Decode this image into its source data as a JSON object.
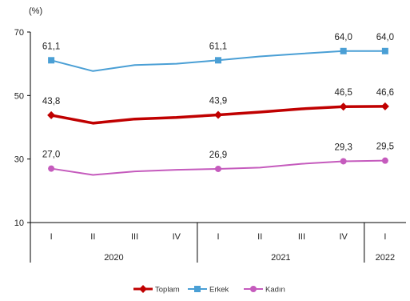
{
  "chart_data": {
    "type": "line",
    "unit_label": "(%)",
    "ylim": [
      10,
      70
    ],
    "yticks": [
      10,
      30,
      50,
      70
    ],
    "categories": [
      "I",
      "II",
      "III",
      "IV",
      "I",
      "II",
      "III",
      "IV",
      "I"
    ],
    "year_groups": [
      {
        "label": "2020",
        "start": 0,
        "end": 3
      },
      {
        "label": "2021",
        "start": 4,
        "end": 7
      },
      {
        "label": "2022",
        "start": 8,
        "end": 8
      }
    ],
    "series": [
      {
        "name": "Toplam",
        "color": "#c00000",
        "marker": "diamond",
        "values": [
          43.8,
          41.3,
          42.6,
          43.1,
          43.9,
          44.8,
          45.8,
          46.5,
          46.6
        ],
        "labels": [
          "43,8",
          "",
          "",
          "",
          "43,9",
          "",
          "",
          "46,5",
          "46,6"
        ]
      },
      {
        "name": "Erkek",
        "color": "#4a9fd5",
        "marker": "square",
        "values": [
          61.1,
          57.7,
          59.6,
          60.0,
          61.1,
          62.3,
          63.2,
          64.0,
          64.0
        ],
        "labels": [
          "61,1",
          "",
          "",
          "",
          "61,1",
          "",
          "",
          "64,0",
          "64,0"
        ]
      },
      {
        "name": "Kadın",
        "color": "#c55bbd",
        "marker": "circle",
        "values": [
          27.0,
          25.0,
          26.1,
          26.6,
          26.9,
          27.3,
          28.5,
          29.3,
          29.5
        ],
        "labels": [
          "27,0",
          "",
          "",
          "",
          "26,9",
          "",
          "",
          "29,3",
          "29,5"
        ]
      }
    ],
    "legend_position": "bottom-center",
    "grid": false
  }
}
